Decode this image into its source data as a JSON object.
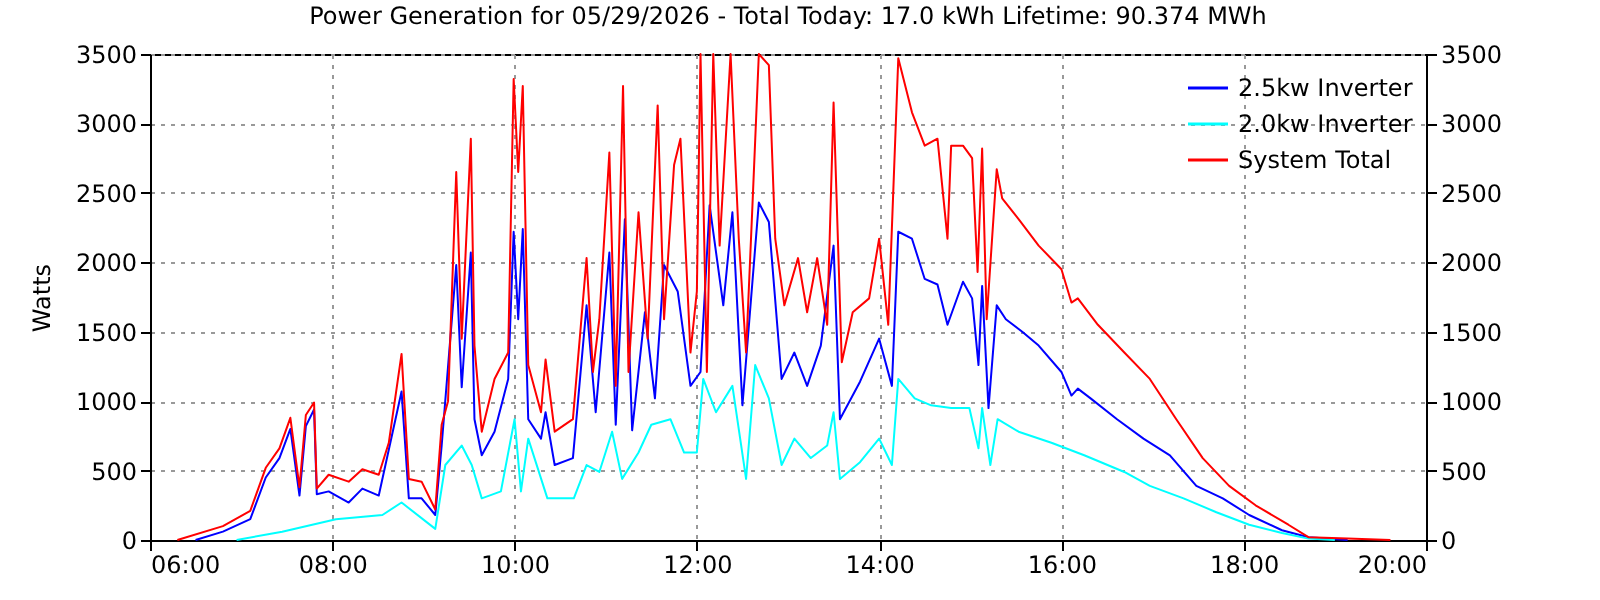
{
  "chart_data": {
    "type": "line",
    "title": "Power Generation for 05/29/2026 - Total Today: 17.0 kWh   Lifetime: 90.374 MWh",
    "ylabel": "Watts",
    "xlim": [
      6,
      20
    ],
    "xticks": [
      {
        "value": 6,
        "label": "06:00"
      },
      {
        "value": 8,
        "label": "08:00"
      },
      {
        "value": 10,
        "label": "10:00"
      },
      {
        "value": 12,
        "label": "12:00"
      },
      {
        "value": 14,
        "label": "14:00"
      },
      {
        "value": 16,
        "label": "16:00"
      },
      {
        "value": 18,
        "label": "18:00"
      },
      {
        "value": 20,
        "label": "20:00"
      }
    ],
    "ylim": [
      0,
      3500
    ],
    "yticks": [
      0,
      500,
      1000,
      1500,
      2000,
      2500,
      3000,
      3500
    ],
    "y2lim": [
      0,
      3500
    ],
    "y2ticks": [
      0,
      500,
      1000,
      1500,
      2000,
      2500,
      3000,
      3500
    ],
    "grid": true,
    "legend": "top right",
    "line_style": "solid",
    "series": [
      {
        "name": "2.5kw Inverter",
        "color": "#0000ff",
        "x": [
          6.5,
          6.8,
          7.1,
          7.27,
          7.42,
          7.54,
          7.64,
          7.71,
          7.8,
          7.83,
          7.96,
          8.18,
          8.33,
          8.51,
          8.76,
          8.84,
          8.98,
          9.13,
          9.2,
          9.36,
          9.42,
          9.52,
          9.56,
          9.64,
          9.78,
          9.93,
          9.99,
          10.04,
          10.09,
          10.15,
          10.29,
          10.34,
          10.44,
          10.64,
          10.79,
          10.89,
          11.04,
          11.11,
          11.21,
          11.29,
          11.43,
          11.54,
          11.64,
          11.79,
          11.93,
          12.04,
          12.14,
          12.29,
          12.39,
          12.5,
          12.68,
          12.79,
          12.93,
          13.07,
          13.21,
          13.36,
          13.5,
          13.57,
          13.79,
          14.0,
          14.14,
          14.21,
          14.36,
          14.5,
          14.64,
          14.75,
          14.92,
          15.02,
          15.09,
          15.13,
          15.2,
          15.29,
          15.39,
          15.57,
          15.75,
          16.0,
          16.11,
          16.18,
          16.32,
          16.61,
          16.9,
          17.19,
          17.48,
          17.77,
          18.06,
          18.42,
          18.71,
          19.14
        ],
        "values": [
          0,
          60,
          150,
          450,
          590,
          800,
          320,
          820,
          940,
          330,
          350,
          270,
          370,
          320,
          1070,
          300,
          300,
          180,
          680,
          1980,
          1100,
          2070,
          870,
          610,
          780,
          1160,
          2220,
          1590,
          2240,
          870,
          730,
          920,
          540,
          590,
          1690,
          920,
          2070,
          830,
          2310,
          790,
          1640,
          1020,
          1980,
          1790,
          1110,
          1210,
          2410,
          1690,
          2360,
          970,
          2430,
          2290,
          1160,
          1350,
          1110,
          1400,
          2120,
          870,
          1140,
          1450,
          1110,
          2220,
          2170,
          1880,
          1840,
          1550,
          1860,
          1740,
          1260,
          1830,
          950,
          1690,
          1590,
          1500,
          1400,
          1210,
          1040,
          1090,
          1020,
          870,
          730,
          610,
          390,
          300,
          180,
          70,
          20,
          0
        ]
      },
      {
        "name": "2.0kw Inverter",
        "color": "#00ffff",
        "x": [
          6.95,
          7.45,
          8.04,
          8.55,
          8.76,
          9.13,
          9.24,
          9.42,
          9.53,
          9.64,
          9.85,
          10.0,
          10.07,
          10.15,
          10.36,
          10.65,
          10.79,
          10.93,
          11.07,
          11.18,
          11.36,
          11.5,
          11.71,
          11.86,
          12.0,
          12.07,
          12.21,
          12.39,
          12.54,
          12.64,
          12.79,
          12.93,
          13.07,
          13.25,
          13.43,
          13.5,
          13.57,
          13.79,
          14.0,
          14.14,
          14.21,
          14.39,
          14.57,
          14.79,
          14.99,
          15.09,
          15.13,
          15.22,
          15.3,
          15.53,
          15.89,
          16.25,
          16.69,
          16.97,
          17.34,
          17.7,
          18.06,
          18.42,
          18.71,
          19.0
        ],
        "values": [
          0,
          60,
          150,
          180,
          270,
          80,
          540,
          680,
          540,
          300,
          350,
          870,
          350,
          730,
          300,
          300,
          540,
          490,
          780,
          440,
          630,
          830,
          870,
          630,
          630,
          1160,
          920,
          1110,
          440,
          1260,
          1020,
          540,
          730,
          590,
          680,
          920,
          440,
          560,
          730,
          540,
          1160,
          1020,
          970,
          950,
          950,
          660,
          950,
          540,
          870,
          780,
          700,
          610,
          490,
          390,
          300,
          200,
          110,
          50,
          10,
          0
        ]
      },
      {
        "name": "System Total",
        "color": "#ff0000",
        "x": [
          6.3,
          6.8,
          7.1,
          7.27,
          7.42,
          7.54,
          7.64,
          7.71,
          7.8,
          7.83,
          7.96,
          8.18,
          8.33,
          8.51,
          8.62,
          8.76,
          8.84,
          8.98,
          9.13,
          9.2,
          9.27,
          9.36,
          9.42,
          9.52,
          9.56,
          9.64,
          9.78,
          9.93,
          9.99,
          10.04,
          10.09,
          10.15,
          10.29,
          10.34,
          10.44,
          10.64,
          10.79,
          10.86,
          10.93,
          11.04,
          11.11,
          11.19,
          11.25,
          11.36,
          11.46,
          11.57,
          11.64,
          11.75,
          11.82,
          11.93,
          12.0,
          12.04,
          12.11,
          12.18,
          12.25,
          12.37,
          12.46,
          12.54,
          12.61,
          12.68,
          12.79,
          12.86,
          12.96,
          13.11,
          13.21,
          13.32,
          13.43,
          13.5,
          13.59,
          13.71,
          13.89,
          14.0,
          14.1,
          14.21,
          14.36,
          14.5,
          14.64,
          14.75,
          14.79,
          14.92,
          15.02,
          15.08,
          15.13,
          15.18,
          15.29,
          15.35,
          15.53,
          15.75,
          16.0,
          16.11,
          16.18,
          16.4,
          16.69,
          16.97,
          17.26,
          17.55,
          17.84,
          18.13,
          18.49,
          18.71,
          19.14,
          19.61
        ],
        "values": [
          0,
          100,
          210,
          520,
          660,
          880,
          380,
          900,
          990,
          370,
          470,
          420,
          510,
          470,
          700,
          1340,
          440,
          420,
          220,
          830,
          1000,
          2650,
          1450,
          2890,
          1400,
          780,
          1160,
          1350,
          3320,
          2650,
          3270,
          1260,
          920,
          1300,
          780,
          870,
          2030,
          1210,
          1590,
          2790,
          1110,
          3270,
          1210,
          2360,
          1450,
          3130,
          1590,
          2700,
          2890,
          1350,
          1790,
          3500,
          1210,
          3500,
          2120,
          3500,
          2170,
          1350,
          2410,
          3500,
          3420,
          2170,
          1690,
          2030,
          1640,
          2030,
          1550,
          3150,
          1280,
          1640,
          1740,
          2170,
          1550,
          3470,
          3080,
          2840,
          2890,
          2170,
          2840,
          2840,
          2750,
          1930,
          2820,
          1590,
          2670,
          2460,
          2310,
          2120,
          1950,
          1710,
          1740,
          1550,
          1350,
          1160,
          870,
          590,
          390,
          250,
          110,
          20,
          10,
          0
        ]
      }
    ]
  }
}
